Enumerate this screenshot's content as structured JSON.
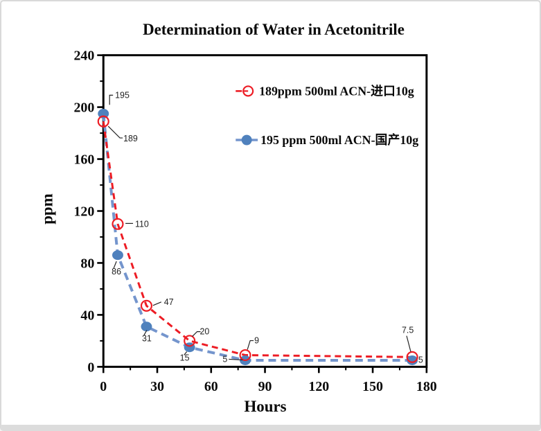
{
  "window": {
    "background": "#ffffff",
    "border_color": "#d9d9d9"
  },
  "chart_data": {
    "type": "line",
    "title": "Determination of Water in Acetonitrile",
    "xlabel": "Hours",
    "ylabel": "ppm",
    "xlim": [
      0,
      180
    ],
    "ylim": [
      0,
      240
    ],
    "x_ticks": [
      0,
      30,
      60,
      90,
      120,
      150,
      180
    ],
    "y_ticks": [
      0,
      40,
      80,
      120,
      160,
      200,
      240
    ],
    "x_minor_step": 15,
    "y_minor_step": 20,
    "grid": false,
    "legend_position": "inside-upper-right",
    "x": [
      0,
      8,
      24,
      48,
      79,
      172
    ],
    "series": [
      {
        "name": "189ppm  500ml ACN-进口10g",
        "color": "#ed1c24",
        "line_color": "#ed1c24",
        "line_style": "dashed",
        "marker": "open-circle",
        "values": [
          189,
          110,
          47,
          20,
          9,
          7.5
        ],
        "point_labels": [
          "189",
          "110",
          "47",
          "20",
          "9",
          "7.5"
        ]
      },
      {
        "name": "195 ppm 500ml ACN-国产10g",
        "color": "#4f81bd",
        "line_color": "#7495cd",
        "line_style": "dashed",
        "marker": "filled-circle",
        "values": [
          195,
          86,
          31,
          15,
          5,
          5
        ],
        "point_labels": [
          "195",
          "86",
          "31",
          "15",
          "5",
          "5"
        ]
      }
    ]
  }
}
